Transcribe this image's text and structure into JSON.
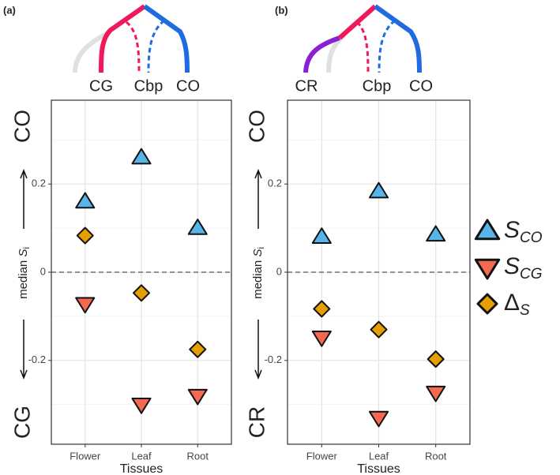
{
  "chart_data": [
    {
      "type": "scatter",
      "panel_label": "(a)",
      "tree_labels": [
        "CG",
        "Cbp",
        "CO"
      ],
      "top_label": "CO",
      "bottom_label": "CG",
      "ylabel": "median ",
      "ylabel_var": "S",
      "ylabel_sub": "i",
      "xlabel": "Tissues",
      "categories": [
        "Flower",
        "Leaf",
        "Root"
      ],
      "ylim": [
        -0.39,
        0.39
      ],
      "yticks": [
        -0.2,
        0.0,
        0.2
      ],
      "minor_yticks": [
        -0.3,
        -0.1,
        0.1,
        0.3
      ],
      "hline": 0,
      "grid": true,
      "series": [
        {
          "name": "S",
          "subscript": "CO",
          "marker": "triangle-up",
          "color": "#56b4e9",
          "values": [
            0.16,
            0.26,
            0.1
          ]
        },
        {
          "name": "S",
          "subscript": "CG",
          "marker": "triangle-down",
          "color": "#f4694f",
          "values": [
            -0.072,
            -0.3,
            -0.28
          ]
        },
        {
          "name": "Δ",
          "subscript": "S",
          "marker": "diamond",
          "color": "#e69f00",
          "values": [
            0.083,
            -0.047,
            -0.175
          ]
        }
      ]
    },
    {
      "type": "scatter",
      "panel_label": "(b)",
      "tree_labels": [
        "CR",
        "Cbp",
        "CO"
      ],
      "top_label": "CO",
      "bottom_label": "CR",
      "ylabel": "median ",
      "ylabel_var": "S",
      "ylabel_sub": "i",
      "xlabel": "Tissues",
      "categories": [
        "Flower",
        "Leaf",
        "Root"
      ],
      "ylim": [
        -0.39,
        0.39
      ],
      "yticks": [
        -0.2,
        0.0,
        0.2
      ],
      "minor_yticks": [
        -0.3,
        -0.1,
        0.1,
        0.3
      ],
      "hline": 0,
      "grid": true,
      "series": [
        {
          "marker": "triangle-up",
          "color": "#56b4e9",
          "values": [
            0.08,
            0.183,
            0.085
          ]
        },
        {
          "marker": "triangle-down",
          "color": "#f4694f",
          "values": [
            -0.148,
            -0.33,
            -0.273
          ]
        },
        {
          "marker": "diamond",
          "color": "#e69f00",
          "values": [
            -0.083,
            -0.13,
            -0.197
          ]
        }
      ]
    }
  ]
}
